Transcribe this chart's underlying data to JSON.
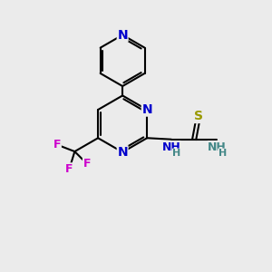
{
  "background_color": "#ebebeb",
  "atom_colors": {
    "C": "#000000",
    "N": "#0000cc",
    "S": "#999900",
    "F": "#cc00cc",
    "H": "#448888"
  },
  "bond_color": "#000000",
  "bond_width": 1.5,
  "figsize": [
    3.0,
    3.0
  ],
  "dpi": 100,
  "xlim": [
    0,
    10
  ],
  "ylim": [
    0,
    10
  ]
}
